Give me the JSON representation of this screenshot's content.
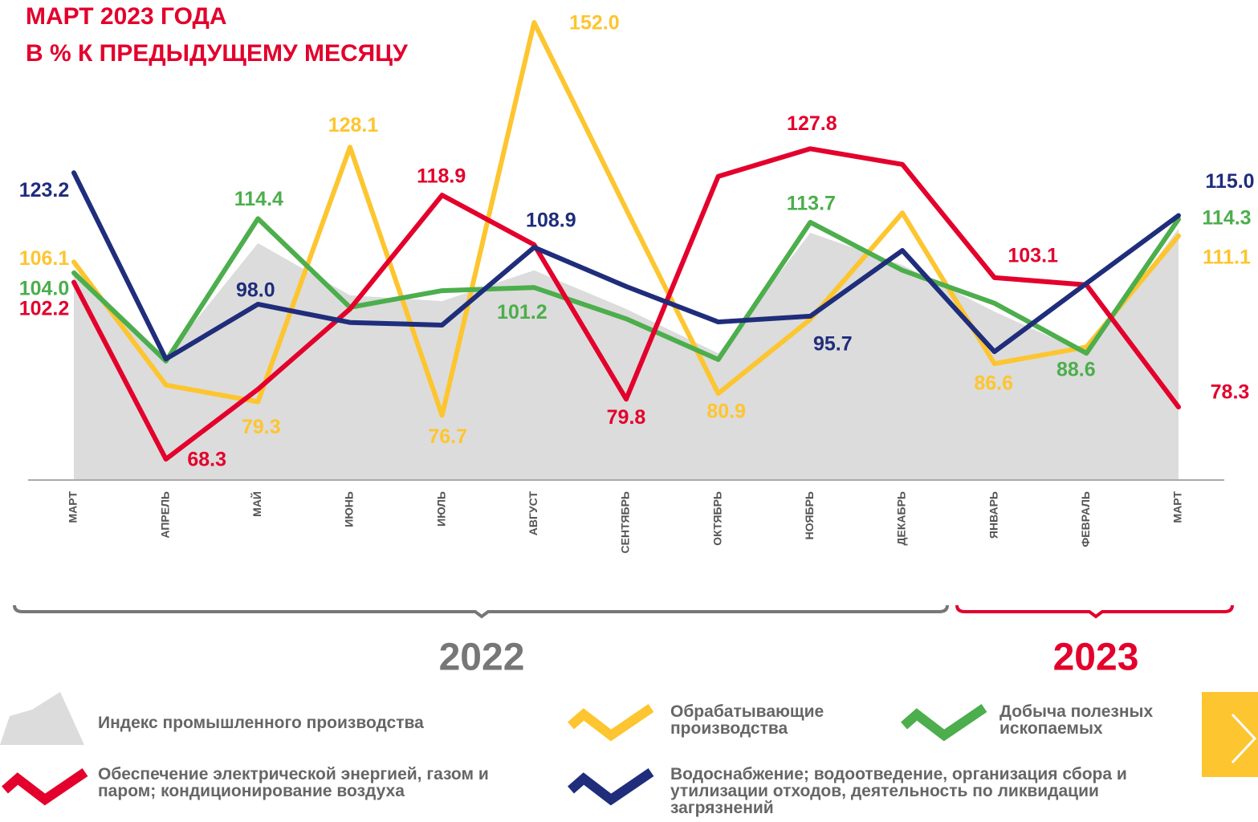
{
  "chart_data": {
    "type": "line",
    "title": [
      "МАРТ 2023 ГОДА",
      "В % К ПРЕДЫДУЩЕМУ МЕСЯЦУ"
    ],
    "title_color": "#e3002c",
    "categories": [
      "МАРТ",
      "АПРЕЛЬ",
      "МАЙ",
      "ИЮНЬ",
      "ИЮЛЬ",
      "АВГУСТ",
      "СЕНТЯБРЬ",
      "ОКТЯБРЬ",
      "НОЯБРЬ",
      "ДЕКАБРЬ",
      "ЯНВАРЬ",
      "ФЕВРАЛЬ",
      "МАРТ"
    ],
    "ylim": [
      64.3,
      152
    ],
    "series": [
      {
        "name": "Индекс промышленного производства",
        "type": "area",
        "color": "#dcdcdc",
        "values": [
          104.8,
          87.8,
          109.7,
          99.7,
          98.6,
          104.5,
          97.1,
          88.6,
          111.7,
          105.5,
          96.6,
          88.6,
          112.5
        ]
      },
      {
        "name": "Обрабатывающие производства",
        "color": "#fdc52f",
        "values": [
          106.1,
          82.5,
          79.3,
          128.1,
          76.7,
          152.0,
          116.2,
          80.9,
          95.1,
          115.5,
          86.6,
          89.8,
          111.1
        ],
        "value_labels": [
          "106.1",
          null,
          "79.3",
          "128.1",
          "76.7",
          "152.0",
          null,
          "80.9",
          null,
          null,
          "86.6",
          null,
          "111.1"
        ]
      },
      {
        "name": "Добыча полезных ископаемых",
        "color": "#4cae4c",
        "values": [
          104.0,
          87.1,
          114.4,
          97.4,
          100.6,
          101.2,
          95.2,
          87.4,
          113.7,
          104.5,
          98.2,
          88.6,
          114.3
        ],
        "value_labels": [
          "104.0",
          null,
          "114.4",
          null,
          null,
          "101.2",
          null,
          null,
          "113.7",
          null,
          null,
          "88.6",
          "114.3"
        ]
      },
      {
        "name": "Обеспечение электрической энергией, газом и паром; кондиционирование воздуха",
        "color": "#e3002c",
        "values": [
          102.2,
          68.3,
          81.7,
          97.1,
          118.9,
          109.4,
          79.8,
          122.5,
          127.8,
          124.8,
          103.1,
          101.7,
          78.3
        ],
        "value_labels": [
          "102.2",
          "68.3",
          null,
          null,
          "118.9",
          null,
          "79.8",
          null,
          "127.8",
          null,
          "103.1",
          null,
          "78.3"
        ]
      },
      {
        "name": "Водоснабжение; водоотведение, организация сбора и утилизации отходов, деятельность по ликвидации загрязнений",
        "color": "#1f2d7b",
        "values": [
          123.2,
          87.5,
          98.0,
          94.5,
          94.0,
          108.9,
          101.4,
          94.6,
          95.7,
          108.3,
          88.9,
          102.0,
          115.0
        ],
        "value_labels": [
          "123.2",
          null,
          "98.0",
          null,
          null,
          "108.9",
          null,
          null,
          "95.7",
          null,
          null,
          null,
          "115.0"
        ]
      }
    ],
    "groups": [
      {
        "label": "2022",
        "color": "#777777"
      },
      {
        "label": "2023",
        "color": "#e3002c"
      }
    ]
  }
}
